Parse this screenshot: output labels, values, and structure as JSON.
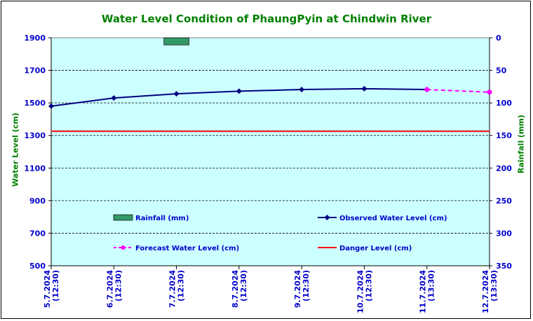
{
  "chart_data": {
    "type": "line",
    "title": "Water Level Condition of PhaungPyin at Chindwin River",
    "ylabel": "Water Level (cm)",
    "y2label": "Rainfall (mm)",
    "ylim": [
      500,
      1900
    ],
    "y2lim": [
      0,
      350
    ],
    "y2_inverted": true,
    "yticks": [
      "1900",
      "1700",
      "1500",
      "1300",
      "1100",
      "900",
      "700",
      "500"
    ],
    "y2ticks": [
      "0",
      "50",
      "100",
      "150",
      "200",
      "250",
      "300",
      "350"
    ],
    "categories": [
      "5.7.2024\n(12:30)",
      "6.7.2024\n(12:30)",
      "7.7.2024\n(12:30)",
      "8.7.2024\n(12:30)",
      "9.7.2024\n(12:30)",
      "10.7.2024\n(12:30)",
      "11.7.2024\n(13:30)",
      "12.7.2024\n(13:30)"
    ],
    "grid": true,
    "legend_placement": "bottom inside plot",
    "series": [
      {
        "name": "Rainfall (mm)",
        "kind": "bar",
        "axis": "right",
        "color": "#339966",
        "values": [
          null,
          null,
          11,
          null,
          null,
          null,
          null,
          null
        ]
      },
      {
        "name": "Observed Water Level (cm)",
        "kind": "line",
        "axis": "left",
        "color": "#000080",
        "marker": "diamond",
        "values": [
          1480,
          1530,
          1556,
          1572,
          1582,
          1587,
          1582,
          null
        ]
      },
      {
        "name": "Forecast Water Level (cm)",
        "kind": "line-dashed",
        "axis": "left",
        "color": "#FF00FF",
        "marker": "circle",
        "values": [
          null,
          null,
          null,
          null,
          null,
          null,
          1582,
          1566
        ]
      },
      {
        "name": "Danger Level (cm)",
        "kind": "hline",
        "axis": "left",
        "color": "#FF0000",
        "value": 1326
      }
    ]
  },
  "colors": {
    "plot_bg": "#CCFFFF",
    "title": "#008000",
    "tick": "#0000CC"
  }
}
